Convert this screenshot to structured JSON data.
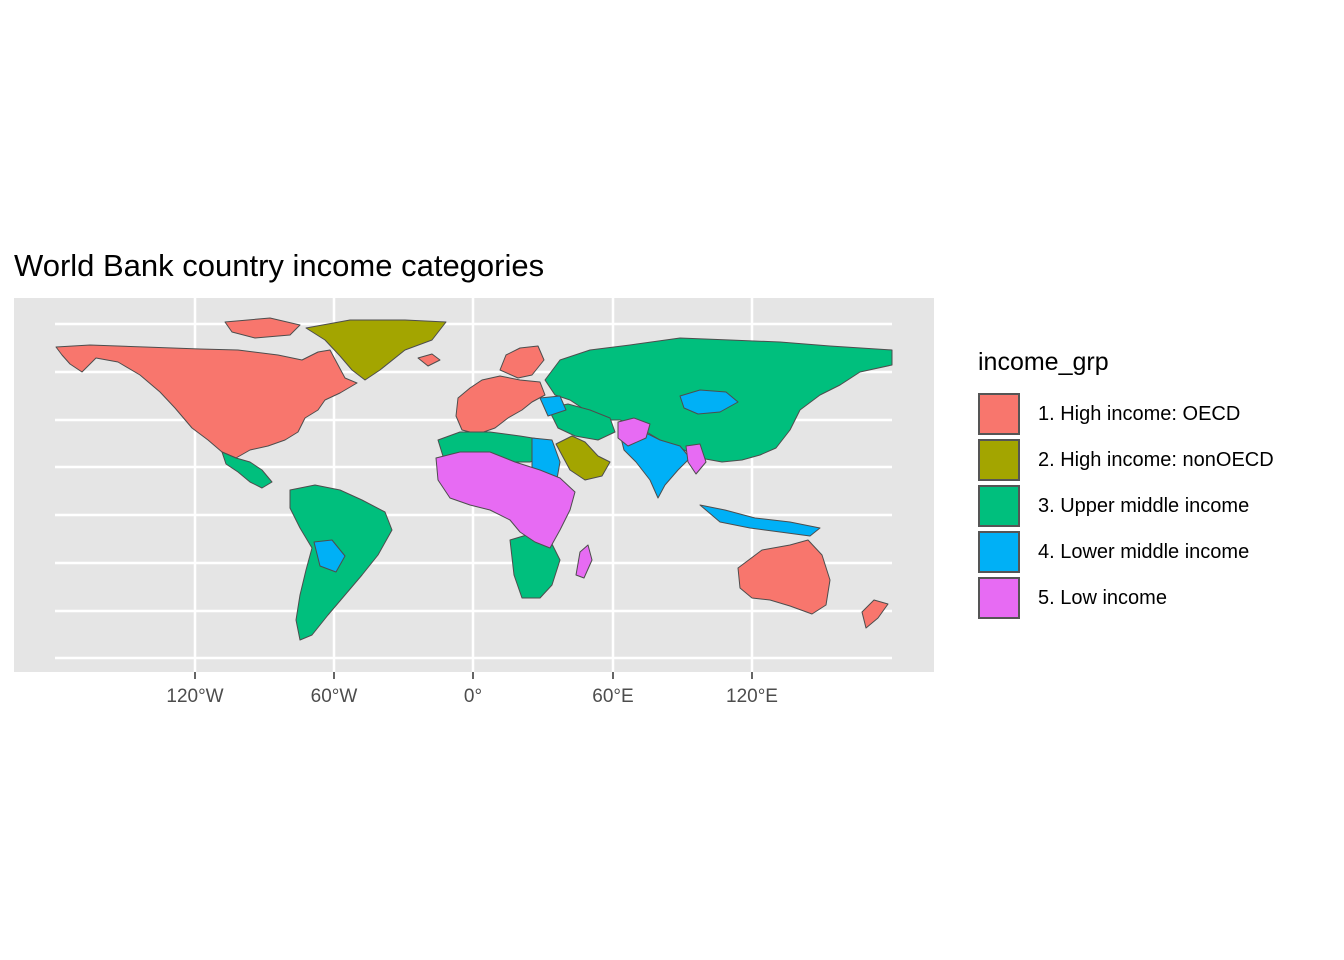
{
  "title": "World Bank country income categories",
  "map": {
    "x_ticks": [
      "120°W",
      "60°W",
      "0°",
      "60°E",
      "120°E"
    ],
    "x_tick_values": [
      -120,
      -60,
      0,
      60,
      120
    ],
    "panel_background": "#e5e5e5",
    "grid_color": "#ffffff",
    "border_color": "#4d4d4d"
  },
  "legend": {
    "title": "income_grp",
    "items": [
      {
        "label": "1. High income: OECD",
        "color": "#F8766D"
      },
      {
        "label": "2. High income: nonOECD",
        "color": "#A3A500"
      },
      {
        "label": "3. Upper middle income",
        "color": "#00BF7D"
      },
      {
        "label": "4. Lower middle income",
        "color": "#00B0F6"
      },
      {
        "label": "5. Low income",
        "color": "#E76BF3"
      }
    ]
  }
}
